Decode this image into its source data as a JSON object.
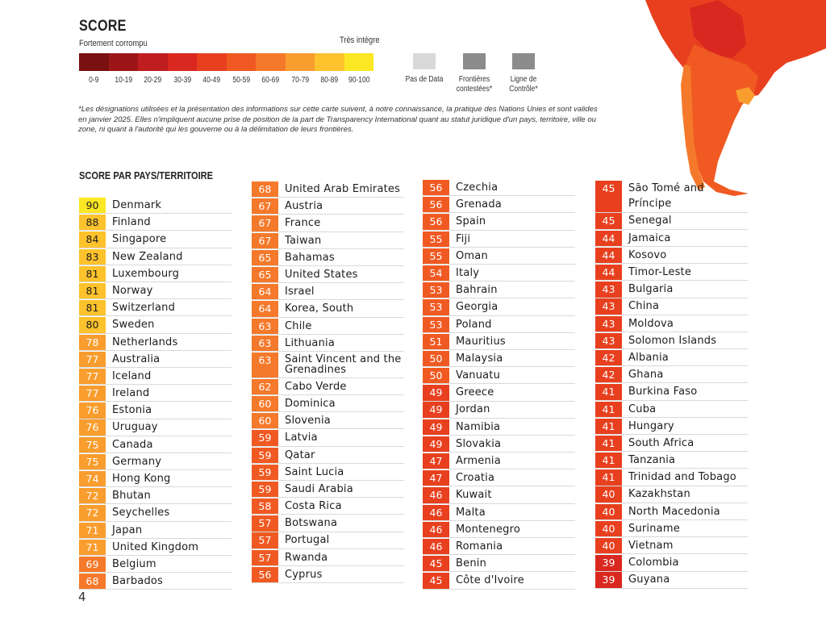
{
  "legend": {
    "title": "SCORE",
    "low_label": "Fortement corrompu",
    "high_label": "Très intègre",
    "bins": [
      {
        "label": "0-9",
        "color": "#7a1010"
      },
      {
        "label": "10-19",
        "color": "#9c1518"
      },
      {
        "label": "20-29",
        "color": "#bf1d1f"
      },
      {
        "label": "30-39",
        "color": "#d9281f"
      },
      {
        "label": "40-49",
        "color": "#e8401f"
      },
      {
        "label": "50-59",
        "color": "#f05a22"
      },
      {
        "label": "60-69",
        "color": "#f5792a"
      },
      {
        "label": "70-79",
        "color": "#f99d2e"
      },
      {
        "label": "80-89",
        "color": "#fdc22c"
      },
      {
        "label": "90-100",
        "color": "#fbe723"
      }
    ],
    "no_data": {
      "label": "Pas de Data",
      "color": "#d9d9d9"
    },
    "disputed": {
      "label": "Frontières contestées*",
      "color": "#8c8c8c"
    },
    "control_line": {
      "label": "Ligne de Contrôle*",
      "color": "#8c8c8c"
    }
  },
  "disclaimer": "*Les désignations utilisées et la présentation des informations sur cette carte suivent, à notre connaissance, la pratique des Nations Unies et sont valides en janvier 2025. Elles n'impliquent aucune prise de position de la part de Transparency International quant au statut juridique d'un pays, territoire, ville ou zone, ni quant à l'autorité qui les gouverne ou à la délimitation de leurs frontières.",
  "section_title": "SCORE PAR PAYS/TERRITOIRE",
  "page_number": "4",
  "columns": [
    [
      {
        "score": "90",
        "name": "Denmark"
      },
      {
        "score": "88",
        "name": "Finland"
      },
      {
        "score": "84",
        "name": "Singapore"
      },
      {
        "score": "83",
        "name": "New Zealand"
      },
      {
        "score": "81",
        "name": "Luxembourg"
      },
      {
        "score": "81",
        "name": "Norway"
      },
      {
        "score": "81",
        "name": "Switzerland"
      },
      {
        "score": "80",
        "name": "Sweden"
      },
      {
        "score": "78",
        "name": "Netherlands"
      },
      {
        "score": "77",
        "name": "Australia"
      },
      {
        "score": "77",
        "name": "Iceland"
      },
      {
        "score": "77",
        "name": "Ireland"
      },
      {
        "score": "76",
        "name": "Estonia"
      },
      {
        "score": "76",
        "name": "Uruguay"
      },
      {
        "score": "75",
        "name": "Canada"
      },
      {
        "score": "75",
        "name": "Germany"
      },
      {
        "score": "74",
        "name": "Hong Kong"
      },
      {
        "score": "72",
        "name": "Bhutan"
      },
      {
        "score": "72",
        "name": "Seychelles"
      },
      {
        "score": "71",
        "name": "Japan"
      },
      {
        "score": "71",
        "name": "United Kingdom"
      },
      {
        "score": "69",
        "name": "Belgium"
      },
      {
        "score": "68",
        "name": "Barbados"
      }
    ],
    [
      {
        "score": "68",
        "name": "United Arab Emirates"
      },
      {
        "score": "67",
        "name": "Austria"
      },
      {
        "score": "67",
        "name": "France"
      },
      {
        "score": "67",
        "name": "Taiwan"
      },
      {
        "score": "65",
        "name": "Bahamas"
      },
      {
        "score": "65",
        "name": "United States"
      },
      {
        "score": "64",
        "name": "Israel"
      },
      {
        "score": "64",
        "name": "Korea, South"
      },
      {
        "score": "63",
        "name": "Chile"
      },
      {
        "score": "63",
        "name": "Lithuania"
      },
      {
        "score": "63",
        "name": "Saint Vincent and the Grenadines"
      },
      {
        "score": "62",
        "name": "Cabo Verde"
      },
      {
        "score": "60",
        "name": "Dominica"
      },
      {
        "score": "60",
        "name": "Slovenia"
      },
      {
        "score": "59",
        "name": "Latvia"
      },
      {
        "score": "59",
        "name": "Qatar"
      },
      {
        "score": "59",
        "name": "Saint Lucia"
      },
      {
        "score": "59",
        "name": "Saudi Arabia"
      },
      {
        "score": "58",
        "name": "Costa Rica"
      },
      {
        "score": "57",
        "name": "Botswana"
      },
      {
        "score": "57",
        "name": "Portugal"
      },
      {
        "score": "57",
        "name": "Rwanda"
      },
      {
        "score": "56",
        "name": "Cyprus"
      }
    ],
    [
      {
        "score": "56",
        "name": "Czechia"
      },
      {
        "score": "56",
        "name": "Grenada"
      },
      {
        "score": "56",
        "name": "Spain"
      },
      {
        "score": "55",
        "name": "Fiji"
      },
      {
        "score": "55",
        "name": "Oman"
      },
      {
        "score": "54",
        "name": "Italy"
      },
      {
        "score": "53",
        "name": "Bahrain"
      },
      {
        "score": "53",
        "name": "Georgia"
      },
      {
        "score": "53",
        "name": "Poland"
      },
      {
        "score": "51",
        "name": "Mauritius"
      },
      {
        "score": "50",
        "name": "Malaysia"
      },
      {
        "score": "50",
        "name": "Vanuatu"
      },
      {
        "score": "49",
        "name": "Greece"
      },
      {
        "score": "49",
        "name": "Jordan"
      },
      {
        "score": "49",
        "name": "Namibia"
      },
      {
        "score": "49",
        "name": "Slovakia"
      },
      {
        "score": "47",
        "name": "Armenia"
      },
      {
        "score": "47",
        "name": "Croatia"
      },
      {
        "score": "46",
        "name": "Kuwait"
      },
      {
        "score": "46",
        "name": "Malta"
      },
      {
        "score": "46",
        "name": "Montenegro"
      },
      {
        "score": "46",
        "name": "Romania"
      },
      {
        "score": "45",
        "name": "Benin"
      },
      {
        "score": "45",
        "name": "Côte d'Ivoire"
      }
    ],
    [
      {
        "score": "45",
        "name": "São Tomé and Príncipe"
      },
      {
        "score": "45",
        "name": "Senegal"
      },
      {
        "score": "44",
        "name": "Jamaica"
      },
      {
        "score": "44",
        "name": "Kosovo"
      },
      {
        "score": "44",
        "name": "Timor-Leste"
      },
      {
        "score": "43",
        "name": "Bulgaria"
      },
      {
        "score": "43",
        "name": "China"
      },
      {
        "score": "43",
        "name": "Moldova"
      },
      {
        "score": "43",
        "name": "Solomon Islands"
      },
      {
        "score": "42",
        "name": "Albania"
      },
      {
        "score": "42",
        "name": "Ghana"
      },
      {
        "score": "41",
        "name": "Burkina Faso"
      },
      {
        "score": "41",
        "name": "Cuba"
      },
      {
        "score": "41",
        "name": "Hungary"
      },
      {
        "score": "41",
        "name": "South Africa"
      },
      {
        "score": "41",
        "name": "Tanzania"
      },
      {
        "score": "41",
        "name": "Trinidad and Tobago"
      },
      {
        "score": "40",
        "name": "Kazakhstan"
      },
      {
        "score": "40",
        "name": "North Macedonia"
      },
      {
        "score": "40",
        "name": "Suriname"
      },
      {
        "score": "40",
        "name": "Vietnam"
      },
      {
        "score": "39",
        "name": "Colombia"
      },
      {
        "score": "39",
        "name": "Guyana"
      }
    ]
  ]
}
